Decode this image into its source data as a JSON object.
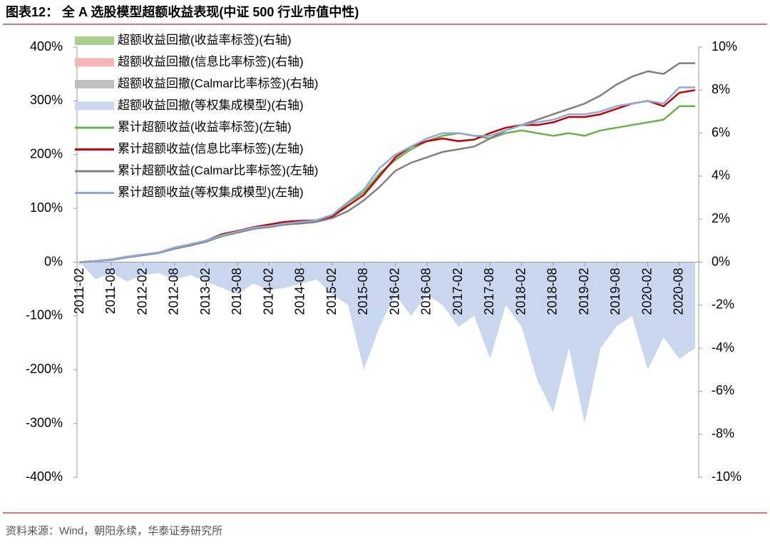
{
  "chart_data": {
    "type": "line",
    "title": "图表12：  全 A 选股模型超额收益表现(中证 500 行业市值中性)",
    "source": "资料来源：Wind，朝阳永续，华泰证券研究所",
    "legend": "upper left",
    "categories": [
      "2011-02",
      null,
      "2011-08",
      null,
      "2012-02",
      null,
      "2012-08",
      null,
      "2013-02",
      null,
      "2013-08",
      null,
      "2014-02",
      null,
      "2014-08",
      null,
      "2015-02",
      null,
      "2015-08",
      null,
      "2016-02",
      null,
      "2016-08",
      null,
      "2017-02",
      null,
      "2017-08",
      null,
      "2018-02",
      null,
      "2018-08",
      null,
      "2019-02",
      null,
      "2019-08",
      null,
      "2020-02",
      null,
      "2020-08",
      null
    ],
    "ylim": [
      -400,
      400
    ],
    "yticks": [
      {
        "value": -400,
        "label": "-400%"
      },
      {
        "value": -300,
        "label": "-300%"
      },
      {
        "value": -200,
        "label": "-200%"
      },
      {
        "value": -100,
        "label": "-100%"
      },
      {
        "value": 0,
        "label": "0%"
      },
      {
        "value": 100,
        "label": "100%"
      },
      {
        "value": 200,
        "label": "200%"
      },
      {
        "value": 300,
        "label": "300%"
      },
      {
        "value": 400,
        "label": "400%"
      }
    ],
    "y2lim": [
      -10,
      10
    ],
    "y2ticks": [
      {
        "value": -10,
        "label": "-10%"
      },
      {
        "value": -8,
        "label": "-8%"
      },
      {
        "value": -6,
        "label": "-6%"
      },
      {
        "value": -4,
        "label": "-4%"
      },
      {
        "value": -2,
        "label": "-2%"
      },
      {
        "value": 0,
        "label": "0%"
      },
      {
        "value": 2,
        "label": "2%"
      },
      {
        "value": 4,
        "label": "4%"
      },
      {
        "value": 6,
        "label": "6%"
      },
      {
        "value": 8,
        "label": "8%"
      },
      {
        "value": 10,
        "label": "10%"
      }
    ],
    "series": [
      {
        "name": "超额收益回撤(收益率标签)(右轴)",
        "color": "#a9d18e",
        "axis": "y2",
        "style": "area",
        "values": [
          0,
          -0.6,
          -0.4,
          -0.7,
          -0.5,
          -0.4,
          -0.6,
          -0.5,
          -0.7,
          -1.0,
          -1.2,
          -0.8,
          -1.0,
          -1.0,
          -0.8,
          -0.6,
          -1.2,
          -1.6,
          -4.0,
          -2.4,
          -1.2,
          -2.0,
          -1.2,
          -1.6,
          -2.4,
          -2.0,
          -3.6,
          -1.6,
          -2.4,
          -4.4,
          -5.6,
          -3.2,
          -6.0,
          -3.2,
          -2.4,
          -2.0,
          -4.0,
          -2.8,
          -3.6,
          -3.2
        ]
      },
      {
        "name": "超额收益回撤(信息比率标签)(右轴)",
        "color": "#f4b6b6",
        "axis": "y2",
        "style": "area",
        "values": [
          0,
          -0.5,
          -0.4,
          -0.6,
          -0.4,
          -0.4,
          -0.5,
          -0.4,
          -0.6,
          -0.9,
          -1.1,
          -0.7,
          -0.9,
          -0.9,
          -0.7,
          -0.5,
          -1.1,
          -1.4,
          -3.5,
          -2.1,
          -1.1,
          -1.8,
          -1.1,
          -1.4,
          -2.1,
          -1.8,
          -3.2,
          -1.4,
          -2.1,
          -3.9,
          -4.9,
          -2.8,
          -5.3,
          -2.8,
          -2.1,
          -1.8,
          -3.5,
          -2.5,
          -3.2,
          -2.8
        ]
      },
      {
        "name": "超额收益回撤(Calmar比率标签)(右轴)",
        "color": "#bfbfbf",
        "axis": "y2",
        "style": "area",
        "values": [
          0,
          -0.5,
          -0.3,
          -0.6,
          -0.4,
          -0.3,
          -0.5,
          -0.4,
          -0.6,
          -0.8,
          -1.0,
          -0.7,
          -0.8,
          -0.8,
          -0.7,
          -0.5,
          -1.0,
          -1.3,
          -3.2,
          -2.0,
          -1.0,
          -1.6,
          -1.0,
          -1.3,
          -2.0,
          -1.6,
          -3.0,
          -1.3,
          -2.0,
          -3.6,
          -4.5,
          -2.6,
          -4.9,
          -2.6,
          -2.0,
          -1.6,
          -3.2,
          -2.3,
          -3.0,
          -2.6
        ]
      },
      {
        "name": "超额收益回撤(等权集成模型)(右轴)",
        "color": "#c9d7ee",
        "axis": "y2",
        "style": "area",
        "values": [
          0,
          -0.8,
          -0.5,
          -0.9,
          -0.6,
          -0.5,
          -0.8,
          -0.6,
          -0.9,
          -1.2,
          -1.5,
          -1.0,
          -1.3,
          -1.2,
          -1.0,
          -0.8,
          -1.5,
          -2.0,
          -5.0,
          -3.0,
          -1.5,
          -2.5,
          -1.5,
          -2.0,
          -3.0,
          -2.5,
          -4.5,
          -2.0,
          -3.0,
          -5.5,
          -7.0,
          -4.0,
          -7.5,
          -4.0,
          -3.0,
          -2.5,
          -5.0,
          -3.5,
          -4.5,
          -4.0
        ]
      },
      {
        "name": "累计超额收益(收益率标签)(左轴)",
        "color": "#6ab04c",
        "style": "line",
        "values": [
          0,
          2,
          5,
          10,
          14,
          18,
          25,
          32,
          38,
          48,
          55,
          62,
          65,
          70,
          72,
          75,
          85,
          110,
          130,
          165,
          190,
          210,
          225,
          235,
          240,
          235,
          230,
          240,
          245,
          240,
          235,
          240,
          235,
          245,
          250,
          255,
          260,
          265,
          290,
          290
        ]
      },
      {
        "name": "累计超额收益(信息比率标签)(左轴)",
        "color": "#c00000",
        "style": "line",
        "values": [
          0,
          2,
          5,
          10,
          14,
          18,
          27,
          33,
          40,
          52,
          58,
          65,
          70,
          75,
          77,
          78,
          85,
          105,
          125,
          160,
          195,
          215,
          225,
          230,
          225,
          228,
          240,
          250,
          255,
          255,
          260,
          270,
          270,
          275,
          285,
          295,
          300,
          290,
          315,
          320
        ]
      },
      {
        "name": "累计超额收益(Calmar比率标签)(左轴)",
        "color": "#7f7f7f",
        "style": "line",
        "values": [
          0,
          2,
          4,
          9,
          13,
          17,
          25,
          31,
          38,
          50,
          55,
          62,
          66,
          70,
          72,
          75,
          82,
          95,
          115,
          140,
          170,
          185,
          195,
          205,
          210,
          215,
          230,
          245,
          255,
          265,
          275,
          285,
          295,
          310,
          330,
          345,
          355,
          350,
          370,
          370
        ]
      },
      {
        "name": "累计超额收益(等权集成模型)(左轴)",
        "color": "#8ea9db",
        "style": "line",
        "values": [
          0,
          2,
          5,
          10,
          14,
          18,
          27,
          33,
          40,
          50,
          57,
          64,
          67,
          72,
          75,
          78,
          88,
          112,
          135,
          175,
          200,
          215,
          230,
          240,
          240,
          235,
          235,
          245,
          255,
          260,
          265,
          275,
          275,
          280,
          290,
          295,
          300,
          295,
          325,
          325
        ]
      }
    ]
  }
}
